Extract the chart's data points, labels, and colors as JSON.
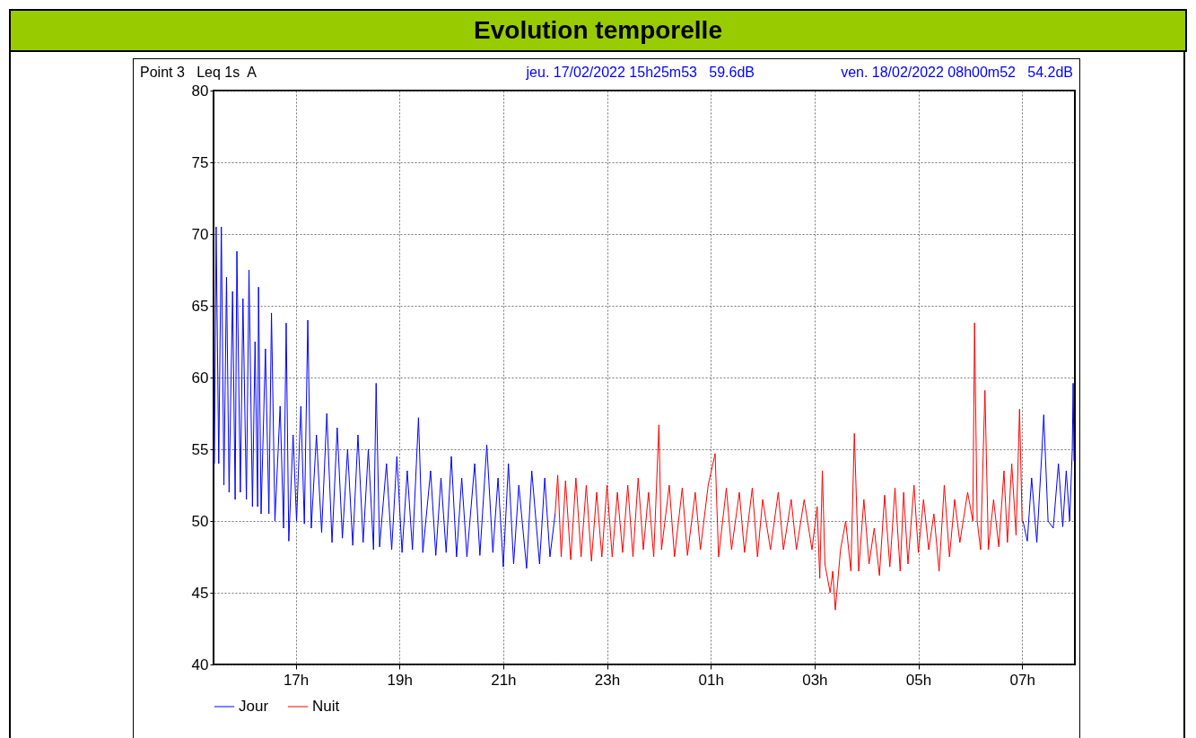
{
  "chart_data": {
    "type": "line",
    "title": "Evolution temporelle",
    "annotations": [
      "Point 3   Leq 1s  A",
      "jeu. 17/02/2022 15h25m53   59.6dB",
      "ven. 18/02/2022 08h00m52   54.2dB"
    ],
    "xlim": [
      "2022-02-17T15:25",
      "2022-02-18T08:01"
    ],
    "ylim": [
      40,
      80
    ],
    "yticks": [
      40,
      45,
      50,
      55,
      60,
      65,
      70,
      75,
      80
    ],
    "xticks": [
      {
        "value": "2022-02-17T17:00",
        "label": "17h"
      },
      {
        "value": "2022-02-17T19:00",
        "label": "19h"
      },
      {
        "value": "2022-02-17T21:00",
        "label": "21h"
      },
      {
        "value": "2022-02-17T23:00",
        "label": "23h"
      },
      {
        "value": "2022-02-18T01:00",
        "label": "01h"
      },
      {
        "value": "2022-02-18T03:00",
        "label": "03h"
      },
      {
        "value": "2022-02-18T05:00",
        "label": "05h"
      },
      {
        "value": "2022-02-18T07:00",
        "label": "07h"
      }
    ],
    "grid": true,
    "legend": "bottom left",
    "series": [
      {
        "name": "Jour",
        "color": "#0000ff",
        "x": [
          "2022-02-17T15:26",
          "2022-02-17T15:28",
          "2022-02-17T15:31",
          "2022-02-17T15:34",
          "2022-02-17T15:37",
          "2022-02-17T15:40",
          "2022-02-17T15:43",
          "2022-02-17T15:47",
          "2022-02-17T15:50",
          "2022-02-17T15:52",
          "2022-02-17T15:56",
          "2022-02-17T15:59",
          "2022-02-17T16:03",
          "2022-02-17T16:06",
          "2022-02-17T16:10",
          "2022-02-17T16:13",
          "2022-02-17T16:16",
          "2022-02-17T16:17",
          "2022-02-17T16:20",
          "2022-02-17T16:25",
          "2022-02-17T16:29",
          "2022-02-17T16:32",
          "2022-02-17T16:36",
          "2022-02-17T16:42",
          "2022-02-17T16:46",
          "2022-02-17T16:49",
          "2022-02-17T16:52",
          "2022-02-17T16:57",
          "2022-02-17T17:01",
          "2022-02-17T17:06",
          "2022-02-17T17:10",
          "2022-02-17T17:14",
          "2022-02-17T17:18",
          "2022-02-17T17:24",
          "2022-02-17T17:30",
          "2022-02-17T17:36",
          "2022-02-17T17:42",
          "2022-02-17T17:48",
          "2022-02-17T17:54",
          "2022-02-17T18:00",
          "2022-02-17T18:06",
          "2022-02-17T18:12",
          "2022-02-17T18:18",
          "2022-02-17T18:24",
          "2022-02-17T18:30",
          "2022-02-17T18:33",
          "2022-02-17T18:37",
          "2022-02-17T18:45",
          "2022-02-17T18:51",
          "2022-02-17T18:57",
          "2022-02-17T19:03",
          "2022-02-17T19:09",
          "2022-02-17T19:15",
          "2022-02-17T19:22",
          "2022-02-17T19:27",
          "2022-02-17T19:36",
          "2022-02-17T19:42",
          "2022-02-17T19:48",
          "2022-02-17T19:54",
          "2022-02-17T20:00",
          "2022-02-17T20:06",
          "2022-02-17T20:12",
          "2022-02-17T20:18",
          "2022-02-17T20:27",
          "2022-02-17T20:33",
          "2022-02-17T20:41",
          "2022-02-17T20:48",
          "2022-02-17T20:54",
          "2022-02-17T21:00",
          "2022-02-17T21:06",
          "2022-02-17T21:12",
          "2022-02-17T21:18",
          "2022-02-17T21:27",
          "2022-02-17T21:33",
          "2022-02-17T21:42",
          "2022-02-17T21:48",
          "2022-02-17T21:54",
          "2022-02-17T22:00",
          "2022-02-18T02:30",
          "2022-02-18T07:01",
          "2022-02-18T07:06",
          "2022-02-18T07:11",
          "2022-02-18T07:17",
          "2022-02-18T07:23",
          "2022-02-18T07:25",
          "2022-02-18T07:30",
          "2022-02-18T07:36",
          "2022-02-18T07:42",
          "2022-02-18T07:47",
          "2022-02-18T07:51",
          "2022-02-18T07:55",
          "2022-02-18T07:58",
          "2022-02-18T07:59",
          "2022-02-18T08:00"
        ],
        "values": [
          54,
          70.5,
          54,
          70.5,
          52.5,
          67,
          52,
          66,
          51.5,
          68.8,
          52,
          65.5,
          51.5,
          67.5,
          51,
          62.5,
          51,
          66.3,
          50.5,
          62,
          50.5,
          64.5,
          50,
          58,
          49.5,
          63.8,
          48.6,
          56,
          50,
          58,
          49.8,
          64,
          49.5,
          56,
          49.2,
          57.5,
          48.5,
          56.5,
          48.8,
          55,
          48.3,
          56,
          48.5,
          55,
          48,
          59.6,
          48.2,
          54,
          48,
          54.5,
          47.8,
          53.5,
          48,
          57.2,
          47.8,
          53.5,
          47.6,
          53,
          47.8,
          54.5,
          47.5,
          53,
          47.5,
          54,
          47.6,
          55.3,
          47.8,
          53,
          46.8,
          54,
          47,
          52.5,
          46.7,
          53.5,
          47,
          53,
          47.5,
          50.5,
          null,
          50,
          48.6,
          53,
          48.5,
          55,
          57.4,
          50,
          49.5,
          54,
          49.6,
          53.5,
          50,
          55,
          59.6,
          54.2
        ]
      },
      {
        "name": "Nuit",
        "color": "#ff0000",
        "x": [
          "2022-02-17T22:00",
          "2022-02-17T22:03",
          "2022-02-17T22:07",
          "2022-02-17T22:12",
          "2022-02-17T22:18",
          "2022-02-17T22:24",
          "2022-02-17T22:30",
          "2022-02-17T22:36",
          "2022-02-17T22:42",
          "2022-02-17T22:48",
          "2022-02-17T22:54",
          "2022-02-17T23:00",
          "2022-02-17T23:06",
          "2022-02-17T23:12",
          "2022-02-17T23:18",
          "2022-02-17T23:24",
          "2022-02-17T23:30",
          "2022-02-17T23:36",
          "2022-02-17T23:42",
          "2022-02-17T23:48",
          "2022-02-17T23:54",
          "2022-02-18T00:00",
          "2022-02-18T00:03",
          "2022-02-18T00:12",
          "2022-02-18T00:18",
          "2022-02-18T00:27",
          "2022-02-18T00:33",
          "2022-02-18T00:42",
          "2022-02-18T00:48",
          "2022-02-18T00:57",
          "2022-02-18T01:05",
          "2022-02-18T01:09",
          "2022-02-18T01:18",
          "2022-02-18T01:24",
          "2022-02-18T01:33",
          "2022-02-18T01:39",
          "2022-02-18T01:48",
          "2022-02-18T01:54",
          "2022-02-18T02:00",
          "2022-02-18T02:09",
          "2022-02-18T02:18",
          "2022-02-18T02:24",
          "2022-02-18T02:33",
          "2022-02-18T02:39",
          "2022-02-18T02:48",
          "2022-02-18T02:57",
          "2022-02-18T03:03",
          "2022-02-18T03:06",
          "2022-02-18T03:09",
          "2022-02-18T03:12",
          "2022-02-18T03:18",
          "2022-02-18T03:21",
          "2022-02-18T03:24",
          "2022-02-18T03:30",
          "2022-02-18T03:36",
          "2022-02-18T03:42",
          "2022-02-18T03:46",
          "2022-02-18T03:51",
          "2022-02-18T03:57",
          "2022-02-18T04:03",
          "2022-02-18T04:09",
          "2022-02-18T04:15",
          "2022-02-18T04:21",
          "2022-02-18T04:27",
          "2022-02-18T04:33",
          "2022-02-18T04:39",
          "2022-02-18T04:43",
          "2022-02-18T04:48",
          "2022-02-18T04:55",
          "2022-02-18T05:00",
          "2022-02-18T05:06",
          "2022-02-18T05:12",
          "2022-02-18T05:18",
          "2022-02-18T05:24",
          "2022-02-18T05:30",
          "2022-02-18T05:36",
          "2022-02-18T05:42",
          "2022-02-18T05:48",
          "2022-02-18T05:57",
          "2022-02-18T06:03",
          "2022-02-18T06:05",
          "2022-02-18T06:08",
          "2022-02-18T06:12",
          "2022-02-18T06:17",
          "2022-02-18T06:21",
          "2022-02-18T06:27",
          "2022-02-18T06:33",
          "2022-02-18T06:39",
          "2022-02-18T06:43",
          "2022-02-18T06:48",
          "2022-02-18T06:53",
          "2022-02-18T06:57",
          "2022-02-18T07:00",
          "2022-02-18T07:01"
        ],
        "values": [
          50.5,
          53.2,
          47.5,
          52.8,
          47.3,
          53,
          47.5,
          52.5,
          47.2,
          52,
          47.5,
          52.5,
          47.5,
          52,
          47.8,
          52.5,
          47.5,
          53,
          48,
          52,
          47.5,
          56.7,
          48,
          52.5,
          47.5,
          52.3,
          47.6,
          52,
          48,
          52.5,
          54.7,
          47.5,
          52.3,
          48,
          52,
          47.8,
          52.3,
          47.5,
          51.5,
          48,
          52,
          48,
          51.5,
          48,
          51.5,
          48,
          51,
          46,
          53.5,
          47,
          45,
          46.5,
          43.8,
          48,
          50,
          46.5,
          56.1,
          46.5,
          51.5,
          47,
          49.5,
          46.2,
          51.8,
          46.8,
          52.3,
          46.5,
          52,
          47,
          52.5,
          47.8,
          51.5,
          48,
          50.5,
          46.5,
          52.5,
          47.5,
          51.5,
          48.5,
          52,
          50,
          63.8,
          50,
          48,
          59.1,
          48,
          51.5,
          48.2,
          53.5,
          48.5,
          54,
          49,
          57.8,
          50,
          50
        ]
      }
    ]
  }
}
